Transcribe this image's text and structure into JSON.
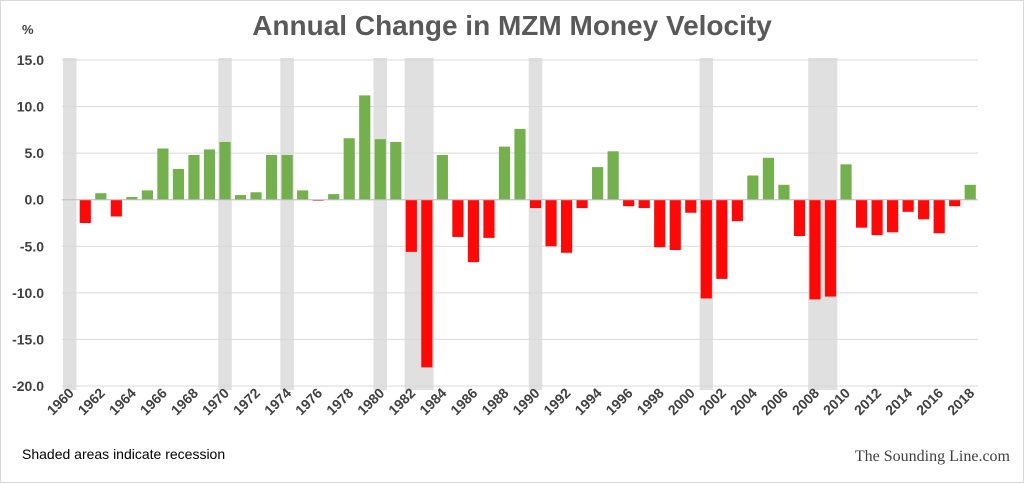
{
  "title": "Annual Change in MZM Money Velocity",
  "unit": "%",
  "note": "Shaded areas indicate recession",
  "watermark": "The Sounding Line.com",
  "colors": {
    "positive": "#70ad47",
    "negative": "#ff0000",
    "recession": "#e0e0e0",
    "grid": "#d9d9d9",
    "text": "#404040",
    "title": "#595959"
  },
  "chart_data": {
    "type": "bar",
    "title": "Annual Change in MZM Money Velocity",
    "ylabel": "%",
    "xlabel": "",
    "ylim": [
      -20,
      15
    ],
    "yticks": [
      15,
      10,
      5,
      0,
      -5,
      -10,
      -15,
      -20
    ],
    "ytick_labels": [
      "15.0",
      "10.0",
      "5.0",
      "0.0",
      "-5.0",
      "-10.0",
      "-15.0",
      "-20.0"
    ],
    "grid": true,
    "categories": [
      1960,
      1961,
      1962,
      1963,
      1964,
      1965,
      1966,
      1967,
      1968,
      1969,
      1970,
      1971,
      1972,
      1973,
      1974,
      1975,
      1976,
      1977,
      1978,
      1979,
      1980,
      1981,
      1982,
      1983,
      1984,
      1985,
      1986,
      1987,
      1988,
      1989,
      1990,
      1991,
      1992,
      1993,
      1994,
      1995,
      1996,
      1997,
      1998,
      1999,
      2000,
      2001,
      2002,
      2003,
      2004,
      2005,
      2006,
      2007,
      2008,
      2009,
      2010,
      2011,
      2012,
      2013,
      2014,
      2015,
      2016,
      2017,
      2018
    ],
    "xtick_labels": [
      "1960",
      "1962",
      "1964",
      "1966",
      "1968",
      "1970",
      "1972",
      "1974",
      "1976",
      "1978",
      "1980",
      "1982",
      "1984",
      "1986",
      "1988",
      "1990",
      "1992",
      "1994",
      "1996",
      "1998",
      "2000",
      "2002",
      "2004",
      "2006",
      "2008",
      "2010",
      "2012",
      "2014",
      "2016",
      "2018"
    ],
    "values": [
      0.0,
      -2.5,
      0.7,
      -1.8,
      0.3,
      1.0,
      5.5,
      3.3,
      4.8,
      5.4,
      6.2,
      0.5,
      0.8,
      4.8,
      4.8,
      1.0,
      -0.1,
      0.6,
      6.6,
      11.2,
      6.5,
      6.2,
      -5.6,
      -18.0,
      4.8,
      -4.0,
      -6.7,
      -4.1,
      5.7,
      7.6,
      -0.9,
      -5.0,
      -5.7,
      -0.9,
      3.5,
      5.2,
      -0.7,
      -0.9,
      -5.1,
      -5.4,
      -1.4,
      -10.6,
      -8.5,
      -2.3,
      2.6,
      4.5,
      1.6,
      -3.9,
      -10.7,
      -10.4,
      3.8,
      -3.0,
      -3.8,
      -3.5,
      -1.3,
      -2.1,
      -3.6,
      -0.7,
      1.6
    ],
    "recessions": [
      {
        "start": 1960,
        "end": 1960
      },
      {
        "start": 1970,
        "end": 1970
      },
      {
        "start": 1974,
        "end": 1974
      },
      {
        "start": 1980,
        "end": 1980
      },
      {
        "start": 1982,
        "end": 1983
      },
      {
        "start": 1990,
        "end": 1990
      },
      {
        "start": 2001,
        "end": 2001
      },
      {
        "start": 2008,
        "end": 2009
      }
    ]
  }
}
